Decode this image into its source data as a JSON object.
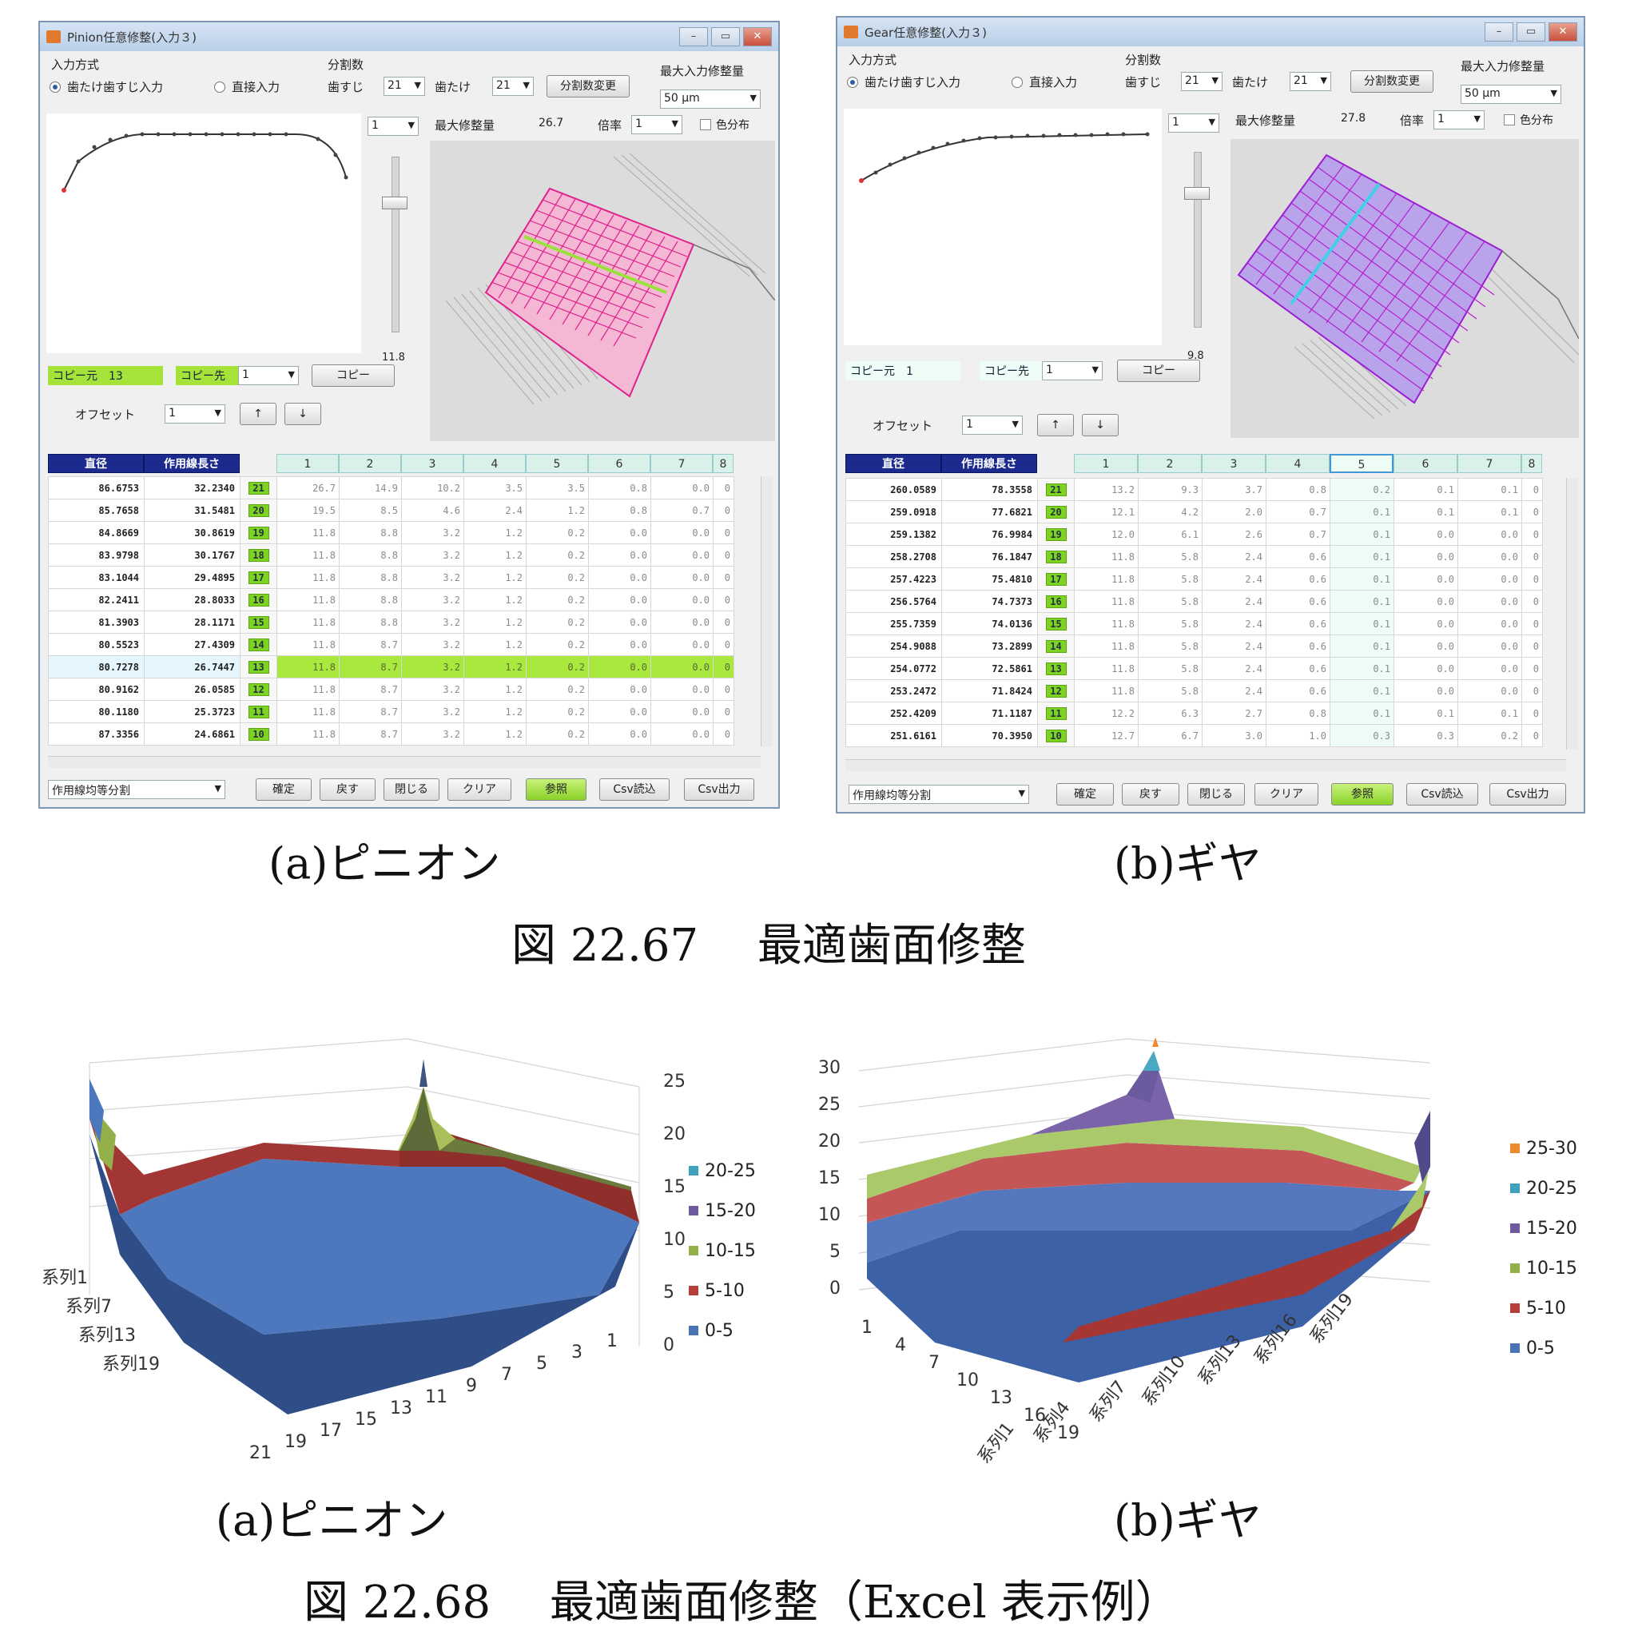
{
  "pinion_window": {
    "title": "Pinion任意修整(入力３)",
    "input_method": "入力方式",
    "radio_tooth": "歯たけ歯すじ入力",
    "radio_direct": "直接入力",
    "divisions": "分割数",
    "lbl_hasuji": "歯すじ",
    "val_hasuji": "21",
    "lbl_hatake": "歯たけ",
    "val_hatake": "21",
    "btn_change_div": "分割数変更",
    "lbl_max_input": "最大入力修整量",
    "val_max_input": "50 μm",
    "sel_profile": "1",
    "lbl_max_mod": "最大修整量",
    "val_max_mod": "26.7",
    "lbl_scale": "倍率",
    "val_scale": "1",
    "chk_color": "色分布",
    "slider_value": "11.8",
    "lbl_copy_src": "コピー元",
    "val_copy_src": "13",
    "lbl_copy_dst": "コピー先",
    "val_copy_dst": "1",
    "btn_copy": "コピー",
    "lbl_offset": "オフセット",
    "val_offset": "1",
    "btn_up": "↑",
    "btn_down": "↓",
    "col_dia": "直径",
    "col_len": "作用線長さ",
    "col_nums": [
      "1",
      "2",
      "3",
      "4",
      "5",
      "6",
      "7",
      "8"
    ],
    "rows": [
      {
        "d": "86.6753",
        "l": "32.2340",
        "i": "21",
        "v": [
          "26.7",
          "14.9",
          "10.2",
          "3.5",
          "3.5",
          "0.8",
          "0.0",
          "0"
        ]
      },
      {
        "d": "85.7658",
        "l": "31.5481",
        "i": "20",
        "v": [
          "19.5",
          "8.5",
          "4.6",
          "2.4",
          "1.2",
          "0.8",
          "0.7",
          "0"
        ]
      },
      {
        "d": "84.8669",
        "l": "30.8619",
        "i": "19",
        "v": [
          "11.8",
          "8.8",
          "3.2",
          "1.2",
          "0.2",
          "0.0",
          "0.0",
          "0"
        ]
      },
      {
        "d": "83.9798",
        "l": "30.1767",
        "i": "18",
        "v": [
          "11.8",
          "8.8",
          "3.2",
          "1.2",
          "0.2",
          "0.0",
          "0.0",
          "0"
        ]
      },
      {
        "d": "83.1044",
        "l": "29.4895",
        "i": "17",
        "v": [
          "11.8",
          "8.8",
          "3.2",
          "1.2",
          "0.2",
          "0.0",
          "0.0",
          "0"
        ]
      },
      {
        "d": "82.2411",
        "l": "28.8033",
        "i": "16",
        "v": [
          "11.8",
          "8.8",
          "3.2",
          "1.2",
          "0.2",
          "0.0",
          "0.0",
          "0"
        ]
      },
      {
        "d": "81.3903",
        "l": "28.1171",
        "i": "15",
        "v": [
          "11.8",
          "8.8",
          "3.2",
          "1.2",
          "0.2",
          "0.0",
          "0.0",
          "0"
        ]
      },
      {
        "d": "80.5523",
        "l": "27.4309",
        "i": "14",
        "v": [
          "11.8",
          "8.7",
          "3.2",
          "1.2",
          "0.2",
          "0.0",
          "0.0",
          "0"
        ]
      },
      {
        "d": "80.7278",
        "l": "26.7447",
        "i": "13",
        "v": [
          "11.8",
          "8.7",
          "3.2",
          "1.2",
          "0.2",
          "0.0",
          "0.0",
          "0"
        ],
        "hl": true
      },
      {
        "d": "80.9162",
        "l": "26.0585",
        "i": "12",
        "v": [
          "11.8",
          "8.7",
          "3.2",
          "1.2",
          "0.2",
          "0.0",
          "0.0",
          "0"
        ]
      },
      {
        "d": "80.1180",
        "l": "25.3723",
        "i": "11",
        "v": [
          "11.8",
          "8.7",
          "3.2",
          "1.2",
          "0.2",
          "0.0",
          "0.0",
          "0"
        ]
      },
      {
        "d": "87.3356",
        "l": "24.6861",
        "i": "10",
        "v": [
          "11.8",
          "8.7",
          "3.2",
          "1.2",
          "0.2",
          "0.0",
          "0.0",
          "0"
        ]
      }
    ],
    "sel_bottom": "作用線均等分割",
    "btn_confirm": "確定",
    "btn_back": "戻す",
    "btn_close": "閉じる",
    "btn_clear": "クリア",
    "btn_apply": "参照",
    "btn_csv_in": "Csv読込",
    "btn_csv_out": "Csv出力"
  },
  "gear_window": {
    "title": "Gear任意修整(入力３)",
    "input_method": "入力方式",
    "radio_tooth": "歯たけ歯すじ入力",
    "radio_direct": "直接入力",
    "divisions": "分割数",
    "lbl_hasuji": "歯すじ",
    "val_hasuji": "21",
    "lbl_hatake": "歯たけ",
    "val_hatake": "21",
    "btn_change_div": "分割数変更",
    "lbl_max_input": "最大入力修整量",
    "val_max_input": "50 μm",
    "sel_profile": "1",
    "lbl_max_mod": "最大修整量",
    "val_max_mod": "27.8",
    "lbl_scale": "倍率",
    "val_scale": "1",
    "chk_color": "色分布",
    "slider_value": "9.8",
    "lbl_copy_src": "コピー元",
    "val_copy_src": "1",
    "lbl_copy_dst": "コピー先",
    "val_copy_dst": "1",
    "btn_copy": "コピー",
    "lbl_offset": "オフセット",
    "val_offset": "1",
    "btn_up": "↑",
    "btn_down": "↓",
    "col_dia": "直径",
    "col_len": "作用線長さ",
    "col_nums": [
      "1",
      "2",
      "3",
      "4",
      "5",
      "6",
      "7",
      "8"
    ],
    "rows": [
      {
        "d": "260.0589",
        "l": "78.3558",
        "i": "21",
        "v": [
          "13.2",
          "9.3",
          "3.7",
          "0.8",
          "0.2",
          "0.1",
          "0.1",
          "0"
        ]
      },
      {
        "d": "259.0918",
        "l": "77.6821",
        "i": "20",
        "v": [
          "12.1",
          "4.2",
          "2.0",
          "0.7",
          "0.1",
          "0.1",
          "0.1",
          "0"
        ]
      },
      {
        "d": "259.1382",
        "l": "76.9984",
        "i": "19",
        "v": [
          "12.0",
          "6.1",
          "2.6",
          "0.7",
          "0.1",
          "0.0",
          "0.0",
          "0"
        ]
      },
      {
        "d": "258.2708",
        "l": "76.1847",
        "i": "18",
        "v": [
          "11.8",
          "5.8",
          "2.4",
          "0.6",
          "0.1",
          "0.0",
          "0.0",
          "0"
        ]
      },
      {
        "d": "257.4223",
        "l": "75.4810",
        "i": "17",
        "v": [
          "11.8",
          "5.8",
          "2.4",
          "0.6",
          "0.1",
          "0.0",
          "0.0",
          "0"
        ]
      },
      {
        "d": "256.5764",
        "l": "74.7373",
        "i": "16",
        "v": [
          "11.8",
          "5.8",
          "2.4",
          "0.6",
          "0.1",
          "0.0",
          "0.0",
          "0"
        ]
      },
      {
        "d": "255.7359",
        "l": "74.0136",
        "i": "15",
        "v": [
          "11.8",
          "5.8",
          "2.4",
          "0.6",
          "0.1",
          "0.0",
          "0.0",
          "0"
        ]
      },
      {
        "d": "254.9088",
        "l": "73.2899",
        "i": "14",
        "v": [
          "11.8",
          "5.8",
          "2.4",
          "0.6",
          "0.1",
          "0.0",
          "0.0",
          "0"
        ]
      },
      {
        "d": "254.0772",
        "l": "72.5861",
        "i": "13",
        "v": [
          "11.8",
          "5.8",
          "2.4",
          "0.6",
          "0.1",
          "0.0",
          "0.0",
          "0"
        ]
      },
      {
        "d": "253.2472",
        "l": "71.8424",
        "i": "12",
        "v": [
          "11.8",
          "5.8",
          "2.4",
          "0.6",
          "0.1",
          "0.0",
          "0.0",
          "0"
        ]
      },
      {
        "d": "252.4209",
        "l": "71.1187",
        "i": "11",
        "v": [
          "12.2",
          "6.3",
          "2.7",
          "0.8",
          "0.1",
          "0.1",
          "0.1",
          "0"
        ]
      },
      {
        "d": "251.6161",
        "l": "70.3950",
        "i": "10",
        "v": [
          "12.7",
          "6.7",
          "3.0",
          "1.0",
          "0.3",
          "0.3",
          "0.2",
          "0"
        ]
      }
    ],
    "sel_bottom": "作用線均等分割",
    "btn_confirm": "確定",
    "btn_back": "戻す",
    "btn_close": "閉じる",
    "btn_clear": "クリア",
    "btn_apply": "参照",
    "btn_csv_in": "Csv読込",
    "btn_csv_out": "Csv出力"
  },
  "captions": {
    "sub_a_top": "(a)ピニオン",
    "sub_b_top": "(b)ギヤ",
    "fig_top": "図 22.67　 最適歯面修整",
    "sub_a_bottom": "(a)ピニオン",
    "sub_b_bottom": "(b)ギヤ",
    "fig_bottom": "図 22.68　 最適歯面修整（Excel 表示例）"
  },
  "colors": {
    "band_0_5": "#4a73b3",
    "band_5_10": "#b63f3c",
    "band_10_15": "#93b04a",
    "band_15_20": "#6e5a9c",
    "band_20_25": "#3fa2bd",
    "band_25_30": "#ed8a2e"
  },
  "chart_data": [
    {
      "type": "surface",
      "zlim": [
        0,
        25
      ],
      "z_ticks": [
        "0",
        "5",
        "10",
        "15",
        "20",
        "25"
      ],
      "x_ticks": [
        "21",
        "19",
        "17",
        "15",
        "13",
        "11",
        "9",
        "7",
        "5",
        "3",
        "1"
      ],
      "series_ticks": [
        "系列1",
        "系列7",
        "系列13",
        "系列19"
      ],
      "legend": [
        "20-25",
        "15-20",
        "10-15",
        "5-10",
        "0-5"
      ],
      "corner_peak": 26.7,
      "edge_value": 11.8,
      "legend_position": "right"
    },
    {
      "type": "surface",
      "zlim": [
        0,
        30
      ],
      "z_ticks": [
        "0",
        "5",
        "10",
        "15",
        "20",
        "25",
        "30"
      ],
      "x_ticks": [
        "1",
        "4",
        "7",
        "10",
        "13",
        "16",
        "19"
      ],
      "series_ticks": [
        "系列1",
        "系列4",
        "系列7",
        "系列10",
        "系列13",
        "系列16",
        "系列19"
      ],
      "legend": [
        "25-30",
        "20-25",
        "15-20",
        "10-15",
        "5-10",
        "0-5"
      ],
      "corner_peak": 27.8,
      "edge_value": 11.8,
      "legend_position": "right"
    }
  ]
}
